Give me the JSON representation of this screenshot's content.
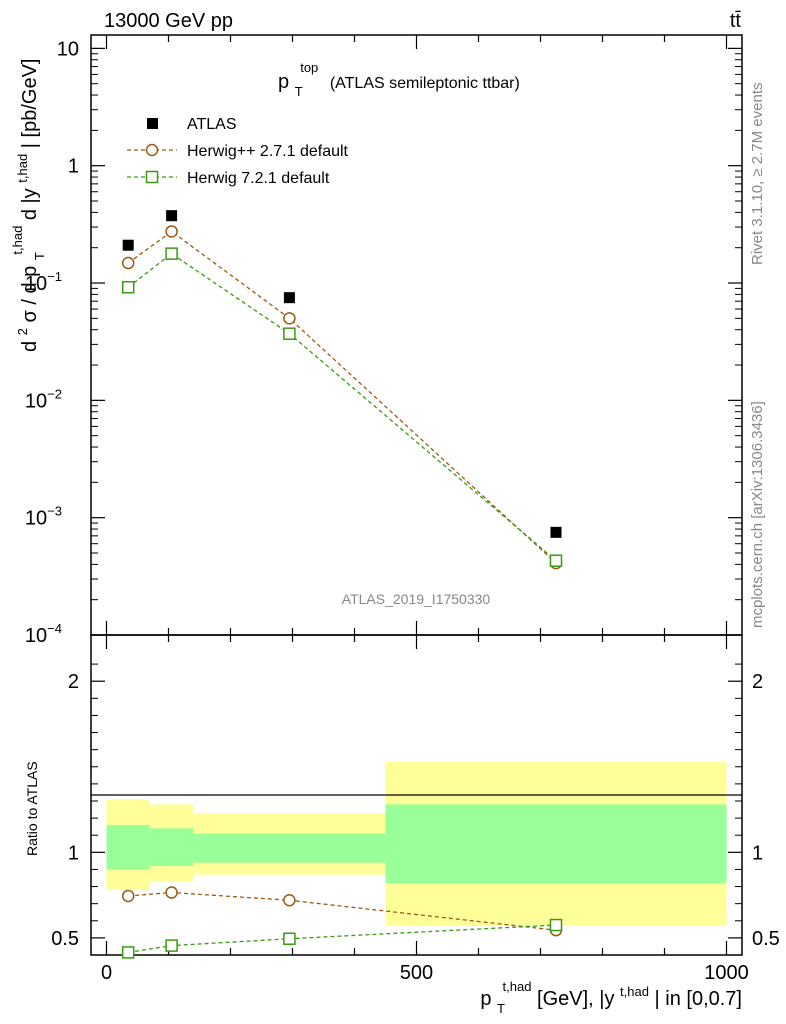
{
  "header": {
    "left_title": "13000 GeV pp",
    "right_title": "tt̄"
  },
  "plot_title": {
    "main": "p",
    "sub": "T",
    "sup": "top",
    "rest": "(ATLAS semileptonic ttbar)"
  },
  "side_labels": {
    "rivet": "Rivet 3.1.10, ≥ 2.7M events",
    "mcplots": "mcplots.cern.ch [arXiv:1306.3436]"
  },
  "watermark": "ATLAS_2019_I1750330",
  "ylabel_main": {
    "d2": "d",
    "two": "2",
    "sigma": "σ  /  d p",
    "T": "T",
    "thad1": "t,had",
    "mid": " d |y",
    "thad2": "t,had",
    "end": "| [pb/GeV]"
  },
  "ylabel_ratio": "Ratio to ATLAS",
  "xlabel": {
    "p": "p",
    "T": "T",
    "thad1": "t,had",
    "mid": " [GeV], |y",
    "thad2": "t,had",
    "end": "| in [0,0.7]"
  },
  "legend": [
    {
      "name": "ATLAS",
      "marker": "square-filled",
      "color": "#000000"
    },
    {
      "name": "Herwig++ 2.7.1 default",
      "marker": "circle-open",
      "color": "#9a5a12"
    },
    {
      "name": "Herwig 7.2.1 default",
      "marker": "square-open",
      "color": "#3a9a12"
    }
  ],
  "chart_data": [
    {
      "type": "scatter",
      "panel": "main",
      "yscale": "log",
      "xlim": [
        -25,
        1025
      ],
      "ylim": [
        0.0001,
        13
      ],
      "y_ticks": [
        {
          "value": 10,
          "label": "10",
          "sup": ""
        },
        {
          "value": 1,
          "label": "1",
          "sup": ""
        },
        {
          "value": 0.1,
          "label": "10",
          "sup": "−1"
        },
        {
          "value": 0.01,
          "label": "10",
          "sup": "−2"
        },
        {
          "value": 0.001,
          "label": "10",
          "sup": "−3"
        },
        {
          "value": 0.0001,
          "label": "10",
          "sup": "−4"
        }
      ],
      "series": [
        {
          "name": "ATLAS",
          "x": [
            35,
            105,
            295,
            725
          ],
          "y": [
            0.21,
            0.375,
            0.075,
            0.00075
          ]
        },
        {
          "name": "Herwig++ 2.7.1 default",
          "x": [
            35,
            105,
            295,
            725
          ],
          "y": [
            0.148,
            0.275,
            0.05,
            0.00041
          ]
        },
        {
          "name": "Herwig 7.2.1 default",
          "x": [
            35,
            105,
            295,
            725
          ],
          "y": [
            0.092,
            0.178,
            0.037,
            0.00043
          ]
        }
      ]
    },
    {
      "type": "line",
      "panel": "ratio",
      "xlim": [
        -25,
        1025
      ],
      "ylim": [
        0.4,
        2.27
      ],
      "y_ticks": [
        0.5,
        1,
        2
      ],
      "x_ticks": [
        0,
        500,
        1000
      ],
      "bands": [
        {
          "x0": 0,
          "x1": 70,
          "yellow": [
            0.78,
            1.31
          ],
          "green": [
            0.9,
            1.16
          ]
        },
        {
          "x0": 70,
          "x1": 140,
          "yellow": [
            0.83,
            1.28
          ],
          "green": [
            0.92,
            1.14
          ]
        },
        {
          "x0": 140,
          "x1": 450,
          "yellow": [
            0.87,
            1.23
          ],
          "green": [
            0.94,
            1.11
          ]
        },
        {
          "x0": 450,
          "x1": 1000,
          "yellow": [
            0.57,
            1.53
          ],
          "green": [
            0.82,
            1.28
          ]
        }
      ],
      "series": [
        {
          "name": "Herwig++ 2.7.1 default",
          "x": [
            35,
            105,
            295,
            725
          ],
          "y": [
            0.745,
            0.765,
            0.72,
            0.545
          ]
        },
        {
          "name": "Herwig 7.2.1 default",
          "x": [
            35,
            105,
            295,
            725
          ],
          "y": [
            0.415,
            0.455,
            0.495,
            0.575
          ]
        }
      ]
    }
  ]
}
